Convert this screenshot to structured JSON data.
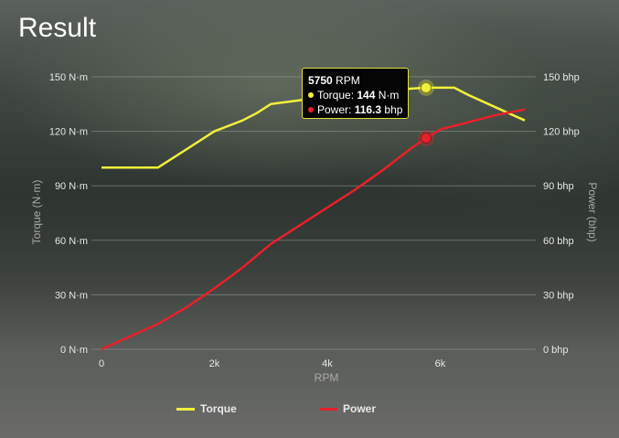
{
  "page": {
    "title": "Result"
  },
  "chart_data": {
    "type": "line",
    "xlabel": "RPM",
    "x_ticks": [
      "0",
      "2k",
      "4k",
      "6k"
    ],
    "x_tick_values": [
      0,
      2000,
      4000,
      6000
    ],
    "xlim": [
      0,
      7500
    ],
    "y_left": {
      "label": "Torque (N·m)",
      "ylim": [
        0,
        150
      ],
      "ticks": [
        "0 N·m",
        "30 N·m",
        "60 N·m",
        "90 N·m",
        "120 N·m",
        "150 N·m"
      ],
      "tick_values": [
        0,
        30,
        60,
        90,
        120,
        150
      ]
    },
    "y_right": {
      "label": "Power (bhp)",
      "ylim": [
        0,
        150
      ],
      "ticks": [
        "0 bhp",
        "30 bhp",
        "60 bhp",
        "90 bhp",
        "120 bhp",
        "150 bhp"
      ],
      "tick_values": [
        0,
        30,
        60,
        90,
        120,
        150
      ]
    },
    "grid": true,
    "legend_position": "bottom",
    "series": [
      {
        "name": "Torque",
        "axis": "left",
        "color": "#f2f03a",
        "x": [
          0,
          500,
          1000,
          1500,
          2000,
          2500,
          2750,
          3000,
          3500,
          4000,
          4500,
          5000,
          5500,
          5750,
          6000,
          6250,
          6500,
          7000,
          7500
        ],
        "y": [
          100,
          100,
          100,
          110,
          120,
          126,
          130,
          135,
          137,
          139,
          141,
          142.5,
          143.5,
          144,
          144,
          144,
          140,
          133,
          126
        ]
      },
      {
        "name": "Power",
        "axis": "right",
        "color": "#e8202a",
        "x": [
          0,
          500,
          1000,
          1500,
          2000,
          2500,
          3000,
          3500,
          4000,
          4500,
          5000,
          5500,
          5750,
          6000,
          6500,
          7000,
          7500
        ],
        "y": [
          0,
          7,
          14,
          23,
          33.5,
          45,
          58,
          68,
          78,
          88,
          99,
          111,
          116.3,
          121,
          125,
          129,
          132
        ]
      }
    ],
    "highlight": {
      "rpm": "5750",
      "rpm_unit": "RPM",
      "torque_label": "Torque: ",
      "torque_value": "144",
      "torque_unit": " N·m",
      "power_label": "Power: ",
      "power_value": "116.3",
      "power_unit": " bhp",
      "x": 5750,
      "torque": 144,
      "power": 116.3
    }
  }
}
